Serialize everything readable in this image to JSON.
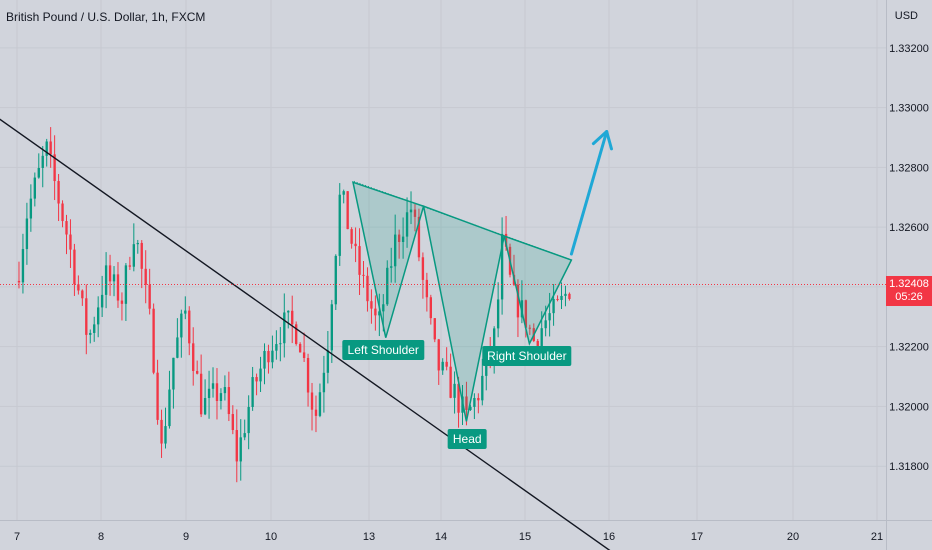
{
  "header": {
    "title": "British Pound / U.S. Dollar, 1h, FXCM",
    "currency": "USD"
  },
  "price_tag": {
    "price": "1.32408",
    "countdown": "05:26"
  },
  "pattern_labels": {
    "left": "Left Shoulder",
    "head": "Head",
    "right": "Right Shoulder"
  },
  "colors": {
    "up": "#089981",
    "down": "#f23645",
    "bg": "#d1d4dc",
    "grid": "#c6c9d1",
    "pattern": "#089981",
    "arrow": "#1fa8d6",
    "trendline": "#131722"
  },
  "chart_data": {
    "type": "candlestick",
    "symbol": "GBPUSD",
    "timeframe": "1h",
    "x_ticks": [
      "7",
      "8",
      "9",
      "10",
      "13",
      "14",
      "15",
      "16",
      "17",
      "20",
      "21"
    ],
    "y_ticks": [
      "1.33200",
      "1.33000",
      "1.32800",
      "1.32600",
      "1.32400",
      "1.32200",
      "1.32000",
      "1.31800"
    ],
    "ylim": [
      1.3162,
      1.3336
    ],
    "last_price": 1.32408,
    "grid": true,
    "path": [
      {
        "x": 0,
        "y": 1.3242
      },
      {
        "x": 0.12,
        "y": 1.3265
      },
      {
        "x": 0.35,
        "y": 1.3286
      },
      {
        "x": 0.6,
        "y": 1.3257
      },
      {
        "x": 0.85,
        "y": 1.3222
      },
      {
        "x": 1.05,
        "y": 1.3244
      },
      {
        "x": 1.25,
        "y": 1.3236
      },
      {
        "x": 1.4,
        "y": 1.326
      },
      {
        "x": 1.6,
        "y": 1.3225
      },
      {
        "x": 1.72,
        "y": 1.3185
      },
      {
        "x": 1.85,
        "y": 1.3215
      },
      {
        "x": 2.0,
        "y": 1.3232
      },
      {
        "x": 2.2,
        "y": 1.32
      },
      {
        "x": 2.45,
        "y": 1.3206
      },
      {
        "x": 2.62,
        "y": 1.3183
      },
      {
        "x": 2.8,
        "y": 1.3205
      },
      {
        "x": 3.0,
        "y": 1.322
      },
      {
        "x": 3.2,
        "y": 1.3228
      },
      {
        "x": 3.35,
        "y": 1.3225
      },
      {
        "x": 3.55,
        "y": 1.3196
      },
      {
        "x": 3.7,
        "y": 1.3222
      },
      {
        "x": 3.85,
        "y": 1.3272
      },
      {
        "x": 4.05,
        "y": 1.3247
      },
      {
        "x": 4.3,
        "y": 1.3226
      },
      {
        "x": 4.5,
        "y": 1.3255
      },
      {
        "x": 4.7,
        "y": 1.3267
      },
      {
        "x": 4.85,
        "y": 1.3238
      },
      {
        "x": 5.0,
        "y": 1.3214
      },
      {
        "x": 5.2,
        "y": 1.3205
      },
      {
        "x": 5.35,
        "y": 1.3196
      },
      {
        "x": 5.5,
        "y": 1.3205
      },
      {
        "x": 5.7,
        "y": 1.3225
      },
      {
        "x": 5.78,
        "y": 1.3256
      },
      {
        "x": 5.9,
        "y": 1.3237
      },
      {
        "x": 6.05,
        "y": 1.323
      },
      {
        "x": 6.15,
        "y": 1.3222
      },
      {
        "x": 6.3,
        "y": 1.3229
      },
      {
        "x": 6.45,
        "y": 1.3233
      },
      {
        "x": 6.6,
        "y": 1.3241
      }
    ],
    "candle_count": 140,
    "seed": 7,
    "trendline": {
      "x1": -0.3,
      "y1": 1.3298,
      "x2": 7.4,
      "y2": 1.3145
    },
    "neckline": {
      "x1": 4.01,
      "y1": 1.32753,
      "x2": 6.6,
      "y2": 1.3249
    },
    "pattern_triangles": [
      [
        {
          "x": 4.0,
          "y": 1.3275
        },
        {
          "x": 4.39,
          "y": 1.3223
        },
        {
          "x": 4.84,
          "y": 1.3267
        }
      ],
      [
        {
          "x": 4.84,
          "y": 1.3267
        },
        {
          "x": 5.35,
          "y": 1.3195
        },
        {
          "x": 5.8,
          "y": 1.3257
        }
      ],
      [
        {
          "x": 5.8,
          "y": 1.3257
        },
        {
          "x": 6.1,
          "y": 1.3221
        },
        {
          "x": 6.6,
          "y": 1.3249
        }
      ]
    ],
    "arrow": {
      "x1": 6.6,
      "y1": 1.3251,
      "x2": 7.02,
      "y2": 1.3292
    },
    "annotations": [
      {
        "key": "left",
        "x": 4.36,
        "y": 1.3219
      },
      {
        "key": "head",
        "x": 5.36,
        "y": 1.3189
      },
      {
        "key": "right",
        "x": 6.07,
        "y": 1.3217
      }
    ]
  }
}
